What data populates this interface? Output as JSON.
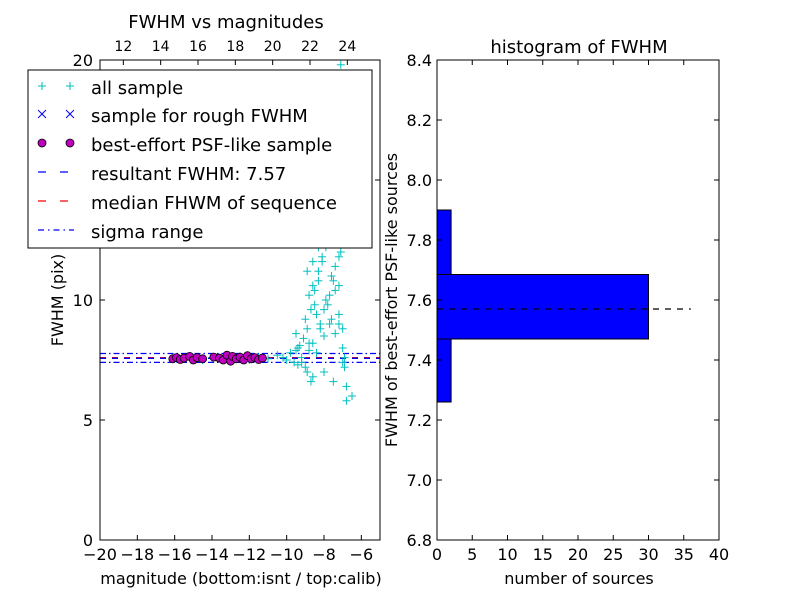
{
  "chart_data": [
    {
      "type": "scatter",
      "title": "FWHM vs magnitudes",
      "xlabel": "magnitude (bottom:isnt / top:calib)",
      "ylabel": "FWHM (pix)",
      "xlim": [
        -20,
        -5
      ],
      "ylim": [
        0,
        20
      ],
      "top_xlim": [
        10.75,
        25.75
      ],
      "x_ticks": [
        -20,
        -18,
        -16,
        -14,
        -12,
        -10,
        -8,
        -6
      ],
      "x_tick_labels": [
        "−20",
        "−18",
        "−16",
        "−14",
        "−12",
        "−10",
        "−8",
        "−6"
      ],
      "top_x_ticks": [
        12,
        14,
        16,
        18,
        20,
        22,
        24
      ],
      "y_ticks": [
        0,
        5,
        10,
        15,
        20
      ],
      "y_tick_labels": [
        "0",
        "5",
        "10",
        "15",
        "20"
      ],
      "legend_position": "top-left",
      "grid": false,
      "legend": [
        {
          "label": "all sample",
          "marker": "+",
          "color": "#00bfbf"
        },
        {
          "label": "sample for rough FWHM",
          "marker": "x",
          "color": "#0000ff"
        },
        {
          "label": "best-effort PSF-like sample",
          "marker": "o",
          "color": "#bf00bf"
        },
        {
          "label": "resultant FWHM: 7.57",
          "linestyle": "dashed",
          "color": "#0000ff"
        },
        {
          "label": "median FHWM of sequence",
          "linestyle": "dashed",
          "color": "#ff0000"
        },
        {
          "label": "sigma range",
          "linestyle": "dashdot",
          "color": "#0000ff"
        }
      ],
      "lines": {
        "resultant_fwhm": 7.57,
        "median_fwhm": 7.6,
        "sigma_range": [
          7.4,
          7.77
        ]
      },
      "best_effort_points": {
        "x": [
          -16.1,
          -15.9,
          -15.7,
          -15.5,
          -15.2,
          -15.0,
          -14.8,
          -14.5,
          -13.9,
          -13.6,
          -13.4,
          -13.2,
          -13.0,
          -12.9,
          -12.7,
          -12.5,
          -12.3,
          -12.1,
          -11.9,
          -11.7,
          -11.5,
          -11.3
        ],
        "y": [
          7.55,
          7.6,
          7.52,
          7.58,
          7.65,
          7.5,
          7.6,
          7.55,
          7.62,
          7.58,
          7.5,
          7.7,
          7.45,
          7.65,
          7.55,
          7.62,
          7.5,
          7.68,
          7.55,
          7.6,
          7.52,
          7.58
        ]
      },
      "all_sample_points": {
        "x": [
          -16.0,
          -15.5,
          -15.0,
          -14.5,
          -14.0,
          -13.5,
          -13.0,
          -12.5,
          -12.0,
          -11.5,
          -11.0,
          -10.5,
          -10.2,
          -10.0,
          -9.8,
          -9.6,
          -9.5,
          -9.4,
          -9.3,
          -9.2,
          -9.1,
          -9.0,
          -8.9,
          -8.8,
          -8.7,
          -8.6,
          -8.5,
          -8.4,
          -8.3,
          -8.2,
          -8.1,
          -8.0,
          -7.9,
          -7.8,
          -7.7,
          -7.6,
          -7.5,
          -7.4,
          -7.3,
          -7.2,
          -7.1,
          -7.0,
          -6.9,
          -6.8,
          -6.5,
          -9.5,
          -9.0,
          -8.8,
          -8.6,
          -8.4,
          -8.2,
          -8.0,
          -7.8,
          -7.6,
          -7.4,
          -7.2,
          -7.0,
          -8.9,
          -8.7,
          -8.5,
          -8.3,
          -8.1,
          -7.9,
          -7.7,
          -7.5,
          -7.3,
          -7.1,
          -9.2,
          -8.6,
          -8.0,
          -7.5,
          -7.0,
          -6.8,
          -8.8,
          -8.4,
          -7.9,
          -7.6,
          -7.3,
          -7.1,
          -8.2,
          -7.7,
          -7.4,
          -7.2,
          -6.9,
          -8.5,
          -8.0,
          -7.5,
          -7.2,
          -9.4,
          -8.9,
          -8.3,
          -7.8,
          -7.4,
          -7.0,
          -8.6,
          -8.1,
          -7.6,
          -7.3,
          -8.0,
          -7.7,
          -7.5,
          -7.2,
          -8.4,
          -7.9,
          -7.6,
          -7.3,
          -7.1,
          -8.3,
          -7.8,
          -7.4,
          -7.1
        ],
        "y": [
          7.6,
          7.55,
          7.6,
          7.5,
          7.6,
          7.55,
          7.6,
          7.65,
          7.5,
          7.6,
          7.55,
          7.7,
          7.6,
          7.5,
          7.8,
          7.4,
          7.9,
          7.3,
          8.1,
          7.6,
          8.4,
          7.2,
          8.8,
          7.9,
          9.6,
          8.2,
          10.4,
          7.8,
          11.2,
          9.0,
          12.5,
          8.5,
          13.5,
          9.8,
          14.8,
          9.2,
          16.2,
          8.6,
          17.8,
          9.4,
          19.8,
          8.0,
          7.2,
          6.4,
          6.0,
          8.6,
          9.2,
          10.2,
          11.6,
          12.8,
          13.6,
          15.2,
          16.8,
          13.0,
          11.4,
          10.6,
          8.8,
          7.0,
          6.6,
          9.8,
          10.8,
          11.8,
          12.2,
          14.2,
          15.6,
          13.8,
          12.0,
          7.4,
          6.8,
          7.0,
          6.6,
          7.4,
          5.8,
          8.2,
          9.4,
          10.0,
          11.0,
          12.6,
          14.0,
          8.8,
          9.0,
          10.4,
          11.8,
          7.6,
          13.2,
          14.6,
          15.0,
          16.0,
          8.0,
          11.2,
          12.2,
          13.8,
          14.4,
          15.4,
          10.6,
          11.6,
          12.4,
          13.4,
          9.6,
          10.2,
          10.8,
          9.0,
          16.6,
          17.2,
          18.2,
          18.8,
          17.4,
          15.8,
          16.4,
          17.0,
          14.8
        ]
      }
    },
    {
      "type": "bar",
      "orientation": "horizontal",
      "title": "histogram of FWHM",
      "xlabel": "number of sources",
      "ylabel": "FWHM of best-effort PSF-like sources",
      "xlim": [
        0,
        40
      ],
      "ylim": [
        6.8,
        8.4
      ],
      "x_ticks": [
        0,
        5,
        10,
        15,
        20,
        25,
        30,
        35,
        40
      ],
      "y_ticks": [
        6.8,
        7.0,
        7.2,
        7.4,
        7.6,
        7.8,
        8.0,
        8.2,
        8.4
      ],
      "y_tick_labels": [
        "6.8",
        "7.0",
        "7.2",
        "7.4",
        "7.6",
        "7.8",
        "8.0",
        "8.2",
        "8.4"
      ],
      "bins": [
        {
          "lower": 7.26,
          "upper": 7.47,
          "count": 2
        },
        {
          "lower": 7.47,
          "upper": 7.685,
          "count": 30
        },
        {
          "lower": 7.685,
          "upper": 7.9,
          "count": 2
        }
      ],
      "bar_color": "#0000ff",
      "reference_line": 7.57,
      "reference_line_extent": [
        0,
        36
      ],
      "grid": false
    }
  ]
}
